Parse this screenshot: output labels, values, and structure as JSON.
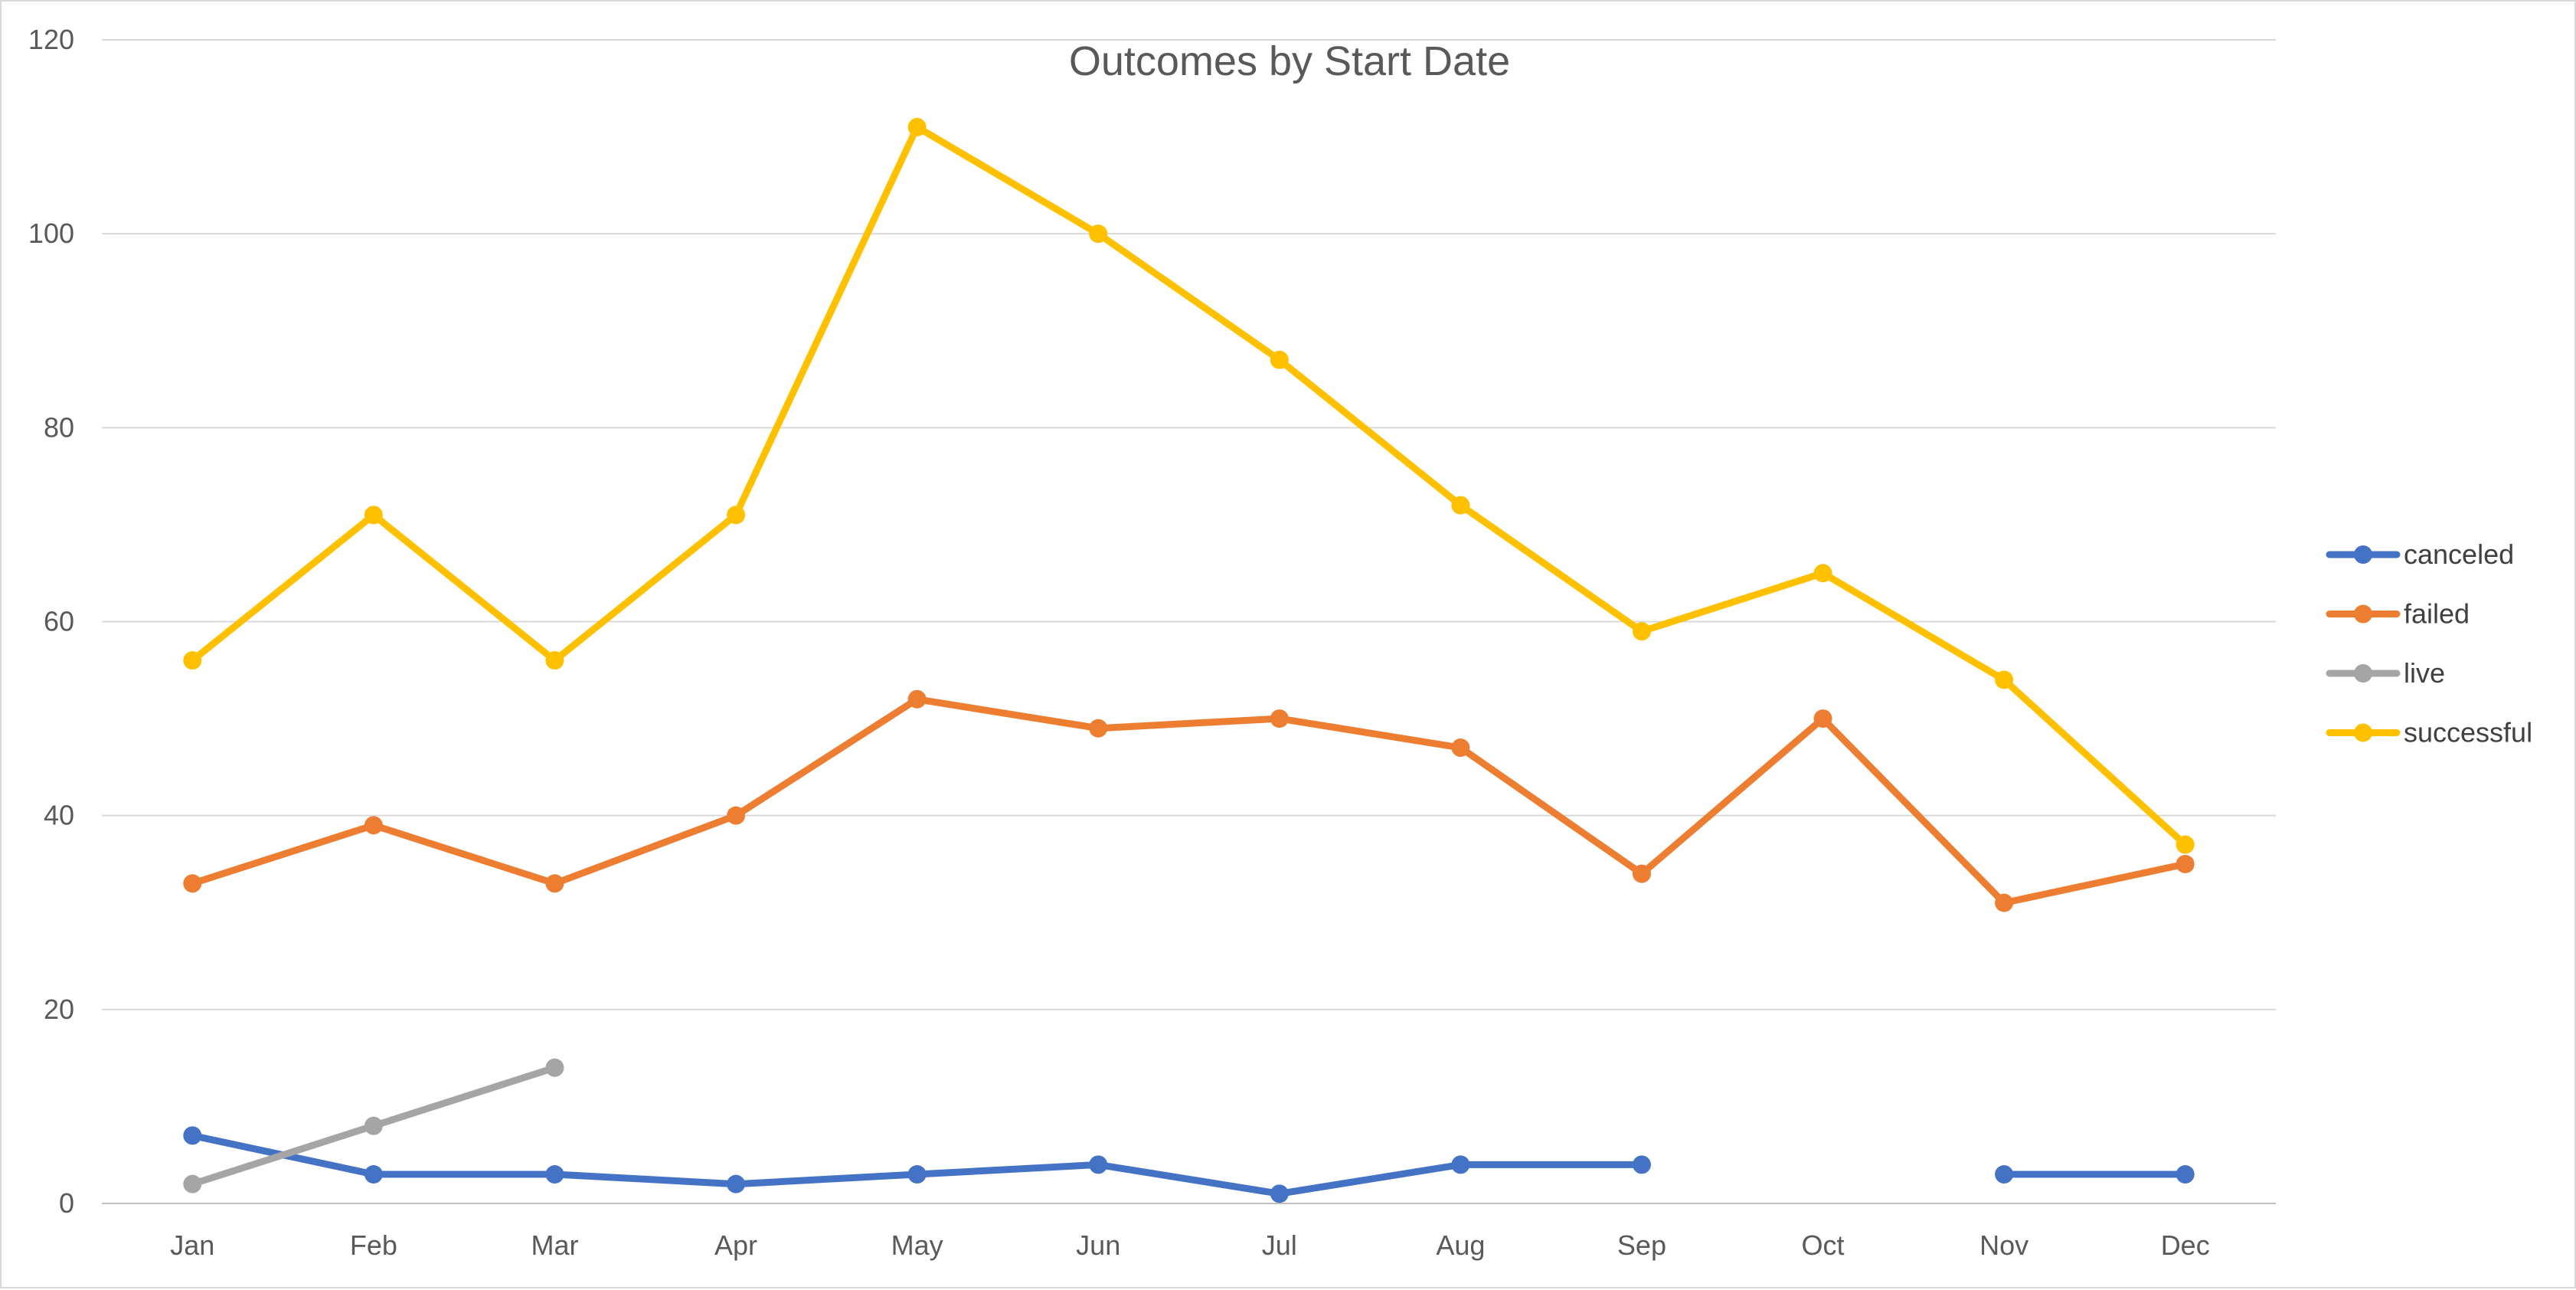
{
  "chart_data": {
    "type": "line",
    "title": "Outcomes by Start Date",
    "xlabel": "",
    "ylabel": "",
    "categories": [
      "Jan",
      "Feb",
      "Mar",
      "Apr",
      "May",
      "Jun",
      "Jul",
      "Aug",
      "Sep",
      "Oct",
      "Nov",
      "Dec"
    ],
    "ylim": [
      0,
      120
    ],
    "yticks": [
      0,
      20,
      40,
      60,
      80,
      100,
      120
    ],
    "grid": true,
    "legend_position": "right",
    "series": [
      {
        "name": "canceled",
        "color": "#4472C4",
        "values": [
          7,
          3,
          3,
          2,
          3,
          4,
          1,
          4,
          4,
          null,
          3,
          3
        ]
      },
      {
        "name": "failed",
        "color": "#ED7D31",
        "values": [
          33,
          39,
          33,
          40,
          52,
          49,
          50,
          47,
          34,
          50,
          31,
          35
        ]
      },
      {
        "name": "live",
        "color": "#A5A5A5",
        "values": [
          2,
          8,
          14,
          null,
          null,
          null,
          null,
          null,
          null,
          null,
          null,
          null
        ]
      },
      {
        "name": "successful",
        "color": "#FFC000",
        "values": [
          56,
          71,
          56,
          71,
          111,
          100,
          87,
          72,
          59,
          65,
          54,
          37
        ]
      }
    ]
  }
}
